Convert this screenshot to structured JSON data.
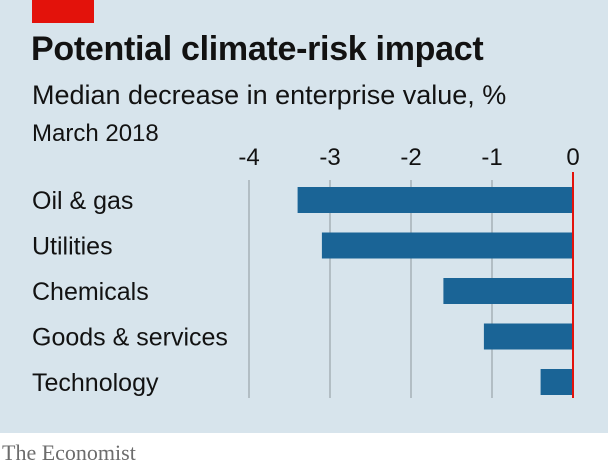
{
  "header": {
    "title": "Potential climate-risk impact",
    "subtitle": "Median decrease in enterprise value, %",
    "date": "March 2018"
  },
  "source": "The Economist",
  "colors": {
    "background": "#d7e4ec",
    "bar": "#1a6496",
    "accent": "#e3120b",
    "gridline": "#9aa4aa",
    "text": "#121212"
  },
  "chart_data": {
    "type": "bar",
    "orientation": "horizontal",
    "categories": [
      "Oil & gas",
      "Utilities",
      "Chemicals",
      "Goods & services",
      "Technology"
    ],
    "values": [
      -3.4,
      -3.1,
      -1.6,
      -1.1,
      -0.4
    ],
    "xlim": [
      -4,
      0
    ],
    "xticks": [
      "-4",
      "-3",
      "-2",
      "-1",
      "0"
    ],
    "tick_values": [
      -4,
      -3,
      -2,
      -1,
      0
    ],
    "grid": true,
    "xaxis_position": "top"
  }
}
